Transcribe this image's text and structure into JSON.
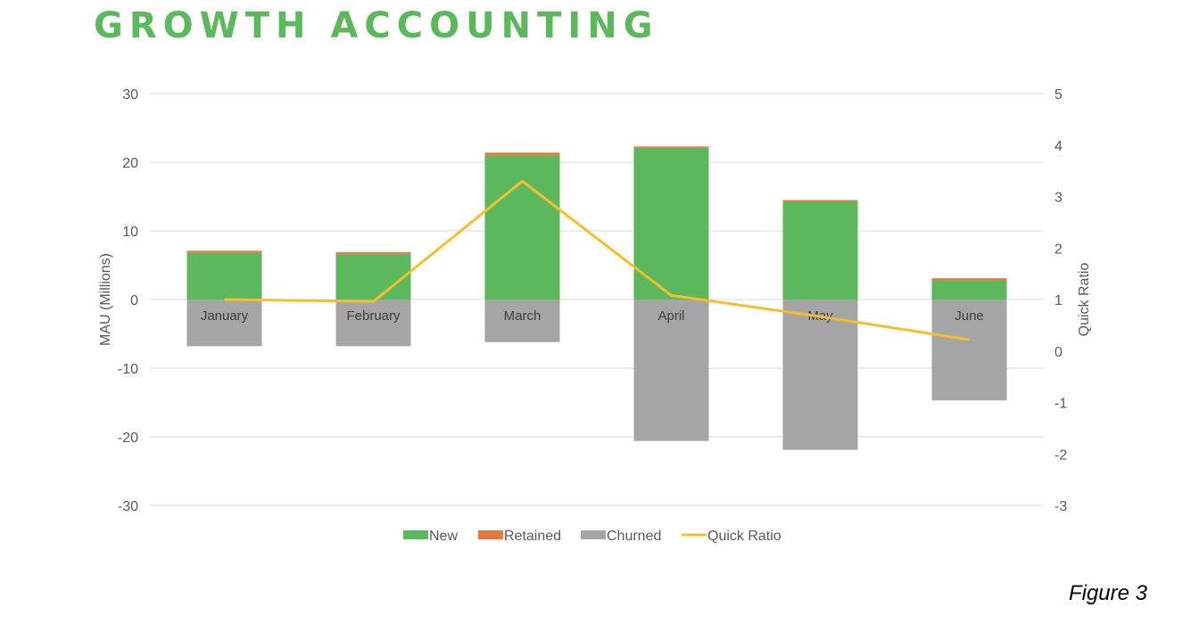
{
  "title": "GROWTH ACCOUNTING",
  "caption": "Figure 3",
  "colors": {
    "title": "#5cb85c",
    "new": "#5cb85c",
    "retained": "#e8793c",
    "churned": "#a5a5a5",
    "quick_ratio": "#f5be2e",
    "grid": "#d9d9d9",
    "axis_text": "#595959"
  },
  "chart_data": {
    "type": "bar",
    "stacked": true,
    "categories": [
      "January",
      "February",
      "March",
      "April",
      "May",
      "June"
    ],
    "series": [
      {
        "name": "New",
        "axis": "left",
        "values": [
          6.8,
          6.6,
          21.0,
          22.1,
          14.3,
          2.8
        ]
      },
      {
        "name": "Retained",
        "axis": "left",
        "values": [
          0.3,
          0.3,
          0.4,
          0.2,
          0.2,
          0.3
        ]
      },
      {
        "name": "Churned",
        "axis": "left",
        "values": [
          -6.8,
          -6.8,
          -6.2,
          -20.6,
          -21.9,
          -14.7
        ]
      },
      {
        "name": "Quick Ratio",
        "type": "line",
        "axis": "right",
        "values": [
          1.0,
          0.96,
          3.3,
          1.08,
          0.67,
          0.22
        ]
      }
    ],
    "ylabel": "MAU (Millions)",
    "y2label": "Quick Ratio",
    "ylim": [
      -30,
      30
    ],
    "yticks": [
      30,
      20,
      10,
      0,
      -10,
      -20,
      -30
    ],
    "y2lim": [
      -3,
      5
    ],
    "y2ticks": [
      5,
      4,
      3,
      2,
      1,
      0,
      -1,
      -2,
      -3
    ],
    "grid": true,
    "legend": "bottom"
  }
}
